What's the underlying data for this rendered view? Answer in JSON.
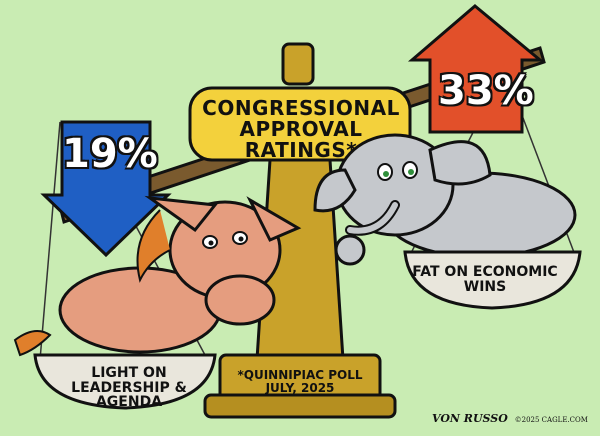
{
  "title": "CONGRESSIONAL APPROVAL RATINGS*",
  "left": {
    "percent": "19%",
    "arrow_color": "#1f5fc4",
    "pan_label": "LIGHT ON LEADERSHIP & AGENDA",
    "figure": "donkey-icon"
  },
  "right": {
    "percent": "33%",
    "arrow_color": "#e2502a",
    "pan_label": "FAT ON ECONOMIC WINS",
    "figure": "elephant-icon"
  },
  "source_note": "*QUINNIPIAC POLL JULY, 2025",
  "signature": "VON RUSSO",
  "signature_sub": "©2025 CAGLE.COM",
  "colors": {
    "background": "#c9ecb3",
    "scale_gold": "#c9a22a",
    "plaque": "#f3d13c",
    "pan": "#e9e6dc"
  }
}
